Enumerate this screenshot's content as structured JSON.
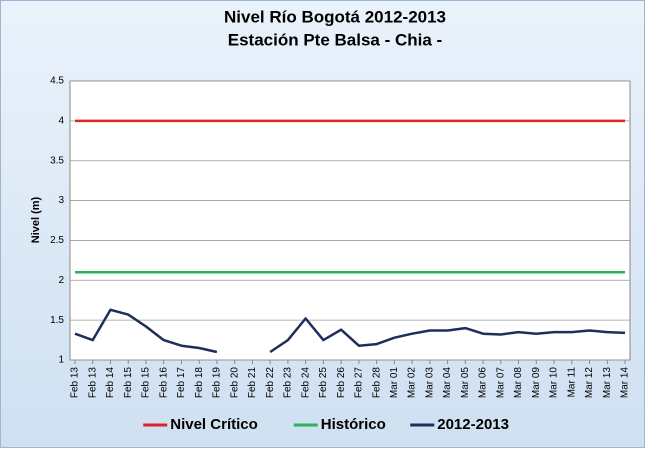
{
  "chart_data": {
    "type": "line",
    "title": "Nivel Río Bogotá  2012-2013",
    "subtitle": "Estación Pte Balsa - Chia -",
    "y_label": "Nivel (m)",
    "categories": [
      "Feb 13",
      "Feb 13",
      "Feb 14",
      "Feb 15",
      "Feb 15",
      "Feb 16",
      "Feb 17",
      "Feb 18",
      "Feb 19",
      "Feb 20",
      "Feb 21",
      "Feb 22",
      "Feb 23",
      "Feb 24",
      "Feb 25",
      "Feb 26",
      "Feb 27",
      "Feb 28",
      "Mar 01",
      "Mar 02",
      "Mar 03",
      "Mar 04",
      "Mar 05",
      "Mar 06",
      "Mar 07",
      "Mar 08",
      "Mar 09",
      "Mar 10",
      "Mar 11",
      "Mar 12",
      "Mar 13",
      "Mar 14"
    ],
    "series": [
      {
        "name": "Nivel Crítico",
        "color": "#e02424",
        "values": [
          4,
          4,
          4,
          4,
          4,
          4,
          4,
          4,
          4,
          4,
          4,
          4,
          4,
          4,
          4,
          4,
          4,
          4,
          4,
          4,
          4,
          4,
          4,
          4,
          4,
          4,
          4,
          4,
          4,
          4,
          4,
          4
        ]
      },
      {
        "name": "Histórico",
        "color": "#2fb15a",
        "values": [
          2.1,
          2.1,
          2.1,
          2.1,
          2.1,
          2.1,
          2.1,
          2.1,
          2.1,
          2.1,
          2.1,
          2.1,
          2.1,
          2.1,
          2.1,
          2.1,
          2.1,
          2.1,
          2.1,
          2.1,
          2.1,
          2.1,
          2.1,
          2.1,
          2.1,
          2.1,
          2.1,
          2.1,
          2.1,
          2.1,
          2.1,
          2.1
        ]
      },
      {
        "name": "2012-2013",
        "color": "#1f2d5a",
        "values": [
          1.33,
          1.25,
          1.63,
          1.57,
          1.42,
          1.25,
          1.18,
          1.15,
          1.1,
          null,
          null,
          1.1,
          1.25,
          1.52,
          1.25,
          1.38,
          1.18,
          1.2,
          1.28,
          1.33,
          1.37,
          1.37,
          1.4,
          1.33,
          1.32,
          1.35,
          1.33,
          1.35,
          1.35,
          1.37,
          1.35,
          1.34
        ]
      }
    ],
    "ylim": [
      1,
      4.5
    ],
    "yticks": [
      1,
      1.5,
      2,
      2.5,
      3,
      3.5,
      4,
      4.5
    ],
    "grid": true,
    "legend": "bottom"
  }
}
